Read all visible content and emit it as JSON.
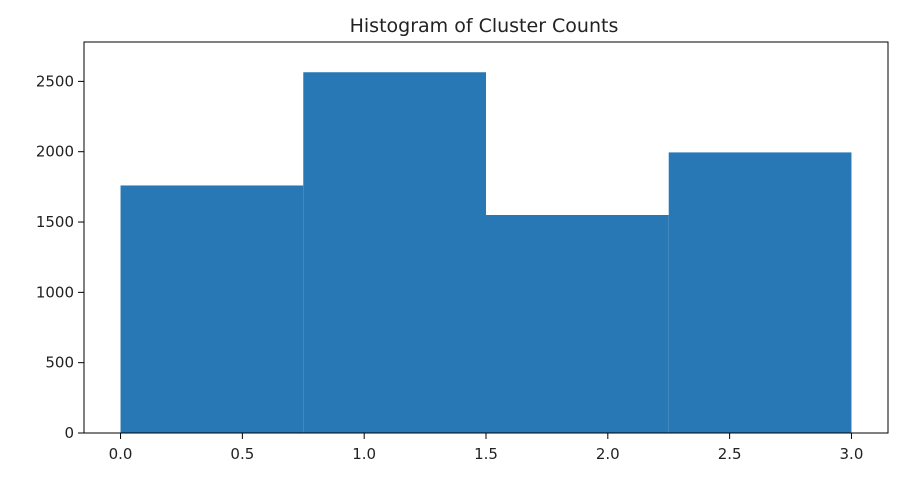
{
  "chart_data": {
    "type": "histogram",
    "title": "Histogram of Cluster Counts",
    "xlabel": "",
    "ylabel": "",
    "bins": [
      {
        "start": 0.0,
        "end": 0.75,
        "value": 1760
      },
      {
        "start": 0.75,
        "end": 1.5,
        "value": 2565
      },
      {
        "start": 1.5,
        "end": 2.25,
        "value": 1550
      },
      {
        "start": 2.25,
        "end": 3.0,
        "value": 1995
      }
    ],
    "xlim": [
      -0.15,
      3.15
    ],
    "ylim": [
      0,
      2780
    ],
    "xticks": [
      0.0,
      0.5,
      1.0,
      1.5,
      2.0,
      2.5,
      3.0
    ],
    "xtick_labels": [
      "0.0",
      "0.5",
      "1.0",
      "1.5",
      "2.0",
      "2.5",
      "3.0"
    ],
    "yticks": [
      0,
      500,
      1000,
      1500,
      2000,
      2500
    ],
    "ytick_labels": [
      "0",
      "500",
      "1000",
      "1500",
      "2000",
      "2500"
    ],
    "bar_color": "#2878b5",
    "grid": false,
    "legend": "none"
  }
}
